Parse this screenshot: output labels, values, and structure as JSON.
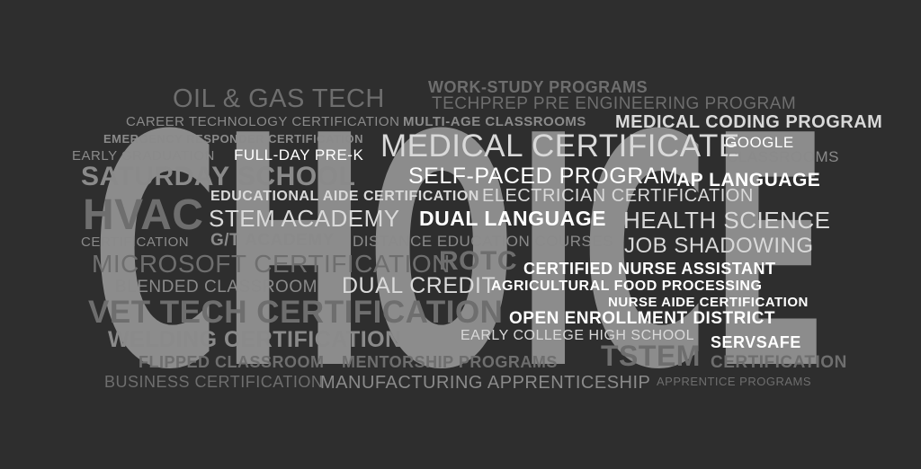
{
  "big_word": "CHOICE",
  "colors": {
    "background": "#2e2e2e",
    "big_word_fill": "#8c8c8c",
    "dim_text": "#6e6e6e",
    "mid_text": "#8a8a8a",
    "light_text": "#d9d9d9",
    "white_text": "#ffffff"
  },
  "words": {
    "oil_gas_tech": "OIL & GAS TECH",
    "work_study": "WORK-STUDY PROGRAMS",
    "techprep": "TECHPREP PRE ENGINEERING PROGRAM",
    "career_tech": "CAREER TECHNOLOGY CERTIFICATION",
    "multi_age": "MULTI-AGE CLASSROOMS",
    "medical_coding": "MEDICAL CODING PROGRAM",
    "emergency": "EMERGENCY RESPONDER CERTIFICATION",
    "medical_certificate": "MEDICAL CERTIFICATE",
    "google": "GOOGLE",
    "early_graduation": "EARLY GRADUATION",
    "full_day": "FULL-DAY PRE-K",
    "classrooms": "CLASSROOMS",
    "saturday_school": "SATURDAY SCHOOL",
    "self_paced": "SELF-PACED PROGRAM",
    "ap_language": "AP LANGUAGE",
    "educational_aide": "EDUCATIONAL AIDE CERTIFICATION",
    "electrician": "ELECTRICIAN CERTIFICATION",
    "hvac": "HVAC",
    "stem_academy": "STEM ACADEMY",
    "dual_language": "DUAL LANGUAGE",
    "health_science": "HEALTH SCIENCE",
    "certification_1": "CERTIFICATION",
    "gt_academy": "G/T ACADEMY",
    "distance_ed": "DISTANCE EDUCATION COURSES",
    "job_shadowing": "JOB SHADOWING",
    "microsoft": "MICROSOFT CERTIFICATION",
    "rotc": "ROTC",
    "cna": "CERTIFIED NURSE ASSISTANT",
    "blended": "BLENDED CLASSROOM",
    "dual_credit": "DUAL CREDIT",
    "agricultural": "AGRICULTURAL FOOD PROCESSING",
    "nurse_aide": "NURSE AIDE CERTIFICATION",
    "vet_tech": "VET TECH CERTIFICATION",
    "open_enrollment": "OPEN ENROLLMENT DISTRICT",
    "welding": "WELDING CERTIFICATION",
    "early_college": "EARLY COLLEGE HIGH SCHOOL",
    "servsafe": "SERVSAFE",
    "flipped": "FLIPPED CLASSROOM",
    "mentorship": "MENTORSHIP PROGRAMS",
    "tstem": "TSTEM",
    "certification_2": "CERTIFICATION",
    "business": "BUSINESS CERTIFICATION",
    "manufacturing": "MANUFACTURING APPRENTICESHIP",
    "apprentice": "APPRENTICE PROGRAMS"
  }
}
